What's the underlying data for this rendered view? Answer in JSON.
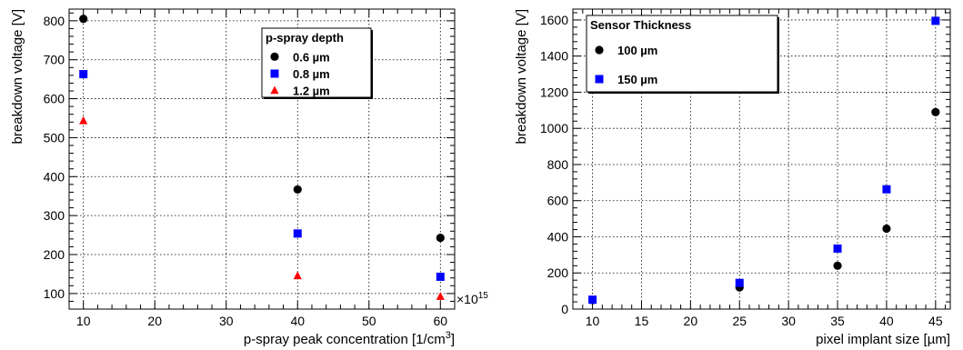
{
  "chart_data": [
    {
      "type": "scatter",
      "title": "",
      "xlabel": "p-spray peak concentration [1/cm",
      "xlabel_sup": "3",
      "xlabel_close": "]",
      "x_multiplier_label": "×10",
      "x_multiplier_exp": "15",
      "ylabel": "breakdown voltage [V]",
      "xlim": [
        8,
        62
      ],
      "ylim": [
        60,
        830
      ],
      "xticks": [
        10,
        20,
        30,
        40,
        50,
        60
      ],
      "yticks": [
        100,
        200,
        300,
        400,
        500,
        600,
        700,
        800
      ],
      "grid": true,
      "legend": {
        "title": "p-spray depth",
        "placement": "top-right"
      },
      "series": [
        {
          "name": "0.6  µm",
          "marker": "circle",
          "color": "#000000",
          "points": [
            [
              10,
              805
            ],
            [
              40,
              367
            ],
            [
              60,
              243
            ]
          ]
        },
        {
          "name": "0.8  µm",
          "marker": "square",
          "color": "#0000ff",
          "points": [
            [
              10,
              663
            ],
            [
              40,
              254
            ],
            [
              60,
              143
            ]
          ]
        },
        {
          "name": "1.2  µm",
          "marker": "triangle",
          "color": "#ff0000",
          "points": [
            [
              10,
              543
            ],
            [
              40,
              145
            ],
            [
              60,
              92
            ]
          ]
        }
      ]
    },
    {
      "type": "scatter",
      "title": "",
      "xlabel": "pixel implant size [µm]",
      "ylabel": "breakdown voltage [V]",
      "xlim": [
        8,
        46.5
      ],
      "ylim": [
        0,
        1660
      ],
      "xticks": [
        10,
        15,
        20,
        25,
        30,
        35,
        40,
        45
      ],
      "yticks": [
        0,
        200,
        400,
        600,
        800,
        1000,
        1200,
        1400,
        1600
      ],
      "grid": true,
      "legend": {
        "title": "Sensor Thickness",
        "placement": "top-left"
      },
      "series": [
        {
          "name": "100  µm",
          "marker": "circle",
          "color": "#000000",
          "points": [
            [
              10,
              50
            ],
            [
              25,
              120
            ],
            [
              35,
              240
            ],
            [
              40,
              445
            ],
            [
              45,
              1090
            ]
          ]
        },
        {
          "name": "150  µm",
          "marker": "square",
          "color": "#0000ff",
          "points": [
            [
              10,
              52
            ],
            [
              25,
              145
            ],
            [
              35,
              335
            ],
            [
              40,
              663
            ],
            [
              45,
              1595
            ]
          ]
        }
      ]
    }
  ]
}
